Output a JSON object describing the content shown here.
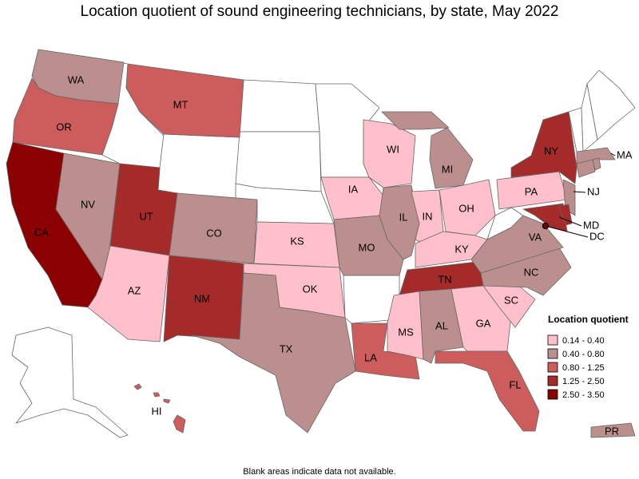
{
  "title": "Location quotient of sound engineering technicians, by state, May 2022",
  "note": "Blank areas indicate data not available.",
  "legend": {
    "title": "Location quotient",
    "bins": [
      {
        "label": "0.14 - 0.40",
        "color": "#ffc0cb"
      },
      {
        "label": "0.40 - 0.80",
        "color": "#bc8f8f"
      },
      {
        "label": "0.80 - 1.25",
        "color": "#cd5c5c"
      },
      {
        "label": "1.25 - 2.50",
        "color": "#a52a2a"
      },
      {
        "label": "2.50 - 3.50",
        "color": "#8b0000"
      }
    ]
  },
  "states": [
    {
      "label": "WA",
      "color": "#bc8f8f"
    },
    {
      "label": "OR",
      "color": "#cd5c5c"
    },
    {
      "label": "CA",
      "color": "#8b0000"
    },
    {
      "label": "NV",
      "color": "#bc8f8f"
    },
    {
      "label": "MT",
      "color": "#cd5c5c"
    },
    {
      "label": "UT",
      "color": "#a52a2a"
    },
    {
      "label": "AZ",
      "color": "#ffc0cb"
    },
    {
      "label": "CO",
      "color": "#bc8f8f"
    },
    {
      "label": "NM",
      "color": "#a52a2a"
    },
    {
      "label": "KS",
      "color": "#ffc0cb"
    },
    {
      "label": "OK",
      "color": "#ffc0cb"
    },
    {
      "label": "TX",
      "color": "#bc8f8f"
    },
    {
      "label": "IA",
      "color": "#ffc0cb"
    },
    {
      "label": "MO",
      "color": "#bc8f8f"
    },
    {
      "label": "LA",
      "color": "#cd5c5c"
    },
    {
      "label": "WI",
      "color": "#ffc0cb"
    },
    {
      "label": "IL",
      "color": "#bc8f8f"
    },
    {
      "label": "MI",
      "color": "#bc8f8f"
    },
    {
      "label": "IN",
      "color": "#ffc0cb"
    },
    {
      "label": "OH",
      "color": "#ffc0cb"
    },
    {
      "label": "KY",
      "color": "#ffc0cb"
    },
    {
      "label": "TN",
      "color": "#a52a2a"
    },
    {
      "label": "MS",
      "color": "#ffc0cb"
    },
    {
      "label": "AL",
      "color": "#bc8f8f"
    },
    {
      "label": "GA",
      "color": "#ffc0cb"
    },
    {
      "label": "FL",
      "color": "#cd5c5c"
    },
    {
      "label": "SC",
      "color": "#ffc0cb"
    },
    {
      "label": "NC",
      "color": "#bc8f8f"
    },
    {
      "label": "VA",
      "color": "#bc8f8f"
    },
    {
      "label": "PA",
      "color": "#ffc0cb"
    },
    {
      "label": "NY",
      "color": "#a52a2a"
    },
    {
      "label": "MD",
      "color": "#a52a2a"
    },
    {
      "label": "NJ",
      "color": "#bc8f8f"
    },
    {
      "label": "DC",
      "color": "#8b0000"
    },
    {
      "label": "MA",
      "color": "#bc8f8f"
    },
    {
      "label": "HI",
      "color": "#cd5c5c"
    },
    {
      "label": "PR",
      "color": "#bc8f8f"
    },
    {
      "label": null,
      "color": "#bc8f8f"
    },
    {
      "label": null,
      "color": "#bc8f8f"
    },
    {
      "label": null,
      "color": "#a52a2a"
    }
  ]
}
